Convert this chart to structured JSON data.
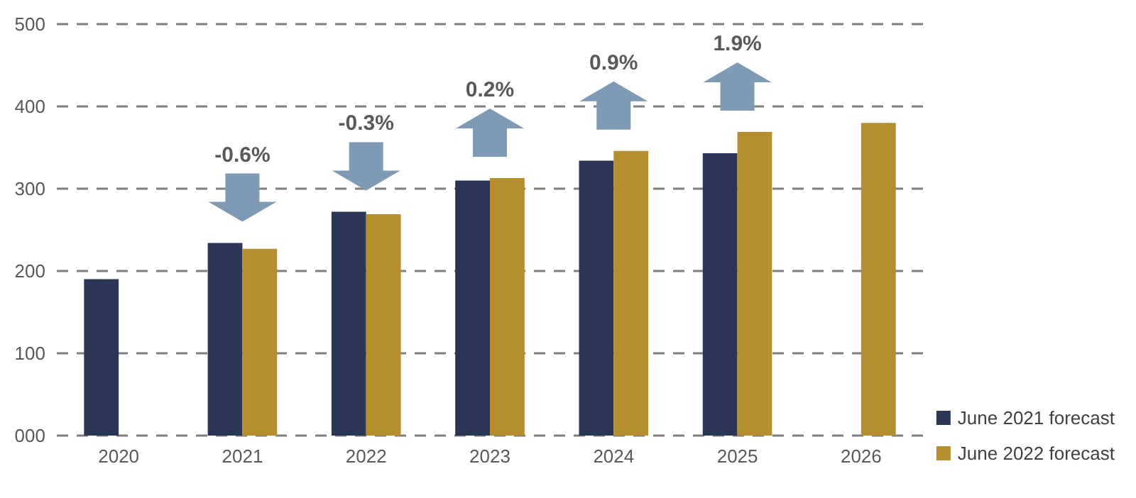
{
  "chart_data": {
    "type": "bar",
    "categories": [
      "2020",
      "2021",
      "2022",
      "2023",
      "2024",
      "2025",
      "2026"
    ],
    "series": [
      {
        "name": "June 2021 forecast",
        "color": "#2b3556",
        "values": [
          190,
          234,
          272,
          310,
          334,
          343,
          null
        ]
      },
      {
        "name": "June 2022 forecast",
        "color": "#b58f2e",
        "values": [
          null,
          227,
          269,
          313,
          346,
          369,
          380
        ]
      }
    ],
    "ylim": [
      0,
      500
    ],
    "yticks": [
      {
        "value": 0,
        "label": "000"
      },
      100,
      200,
      300,
      400,
      500
    ],
    "grid": "y",
    "legend": "bottom right",
    "annotations": [
      "-0.6%",
      "-0.3%",
      "0.2%",
      "0.9%",
      "1.9%"
    ]
  }
}
